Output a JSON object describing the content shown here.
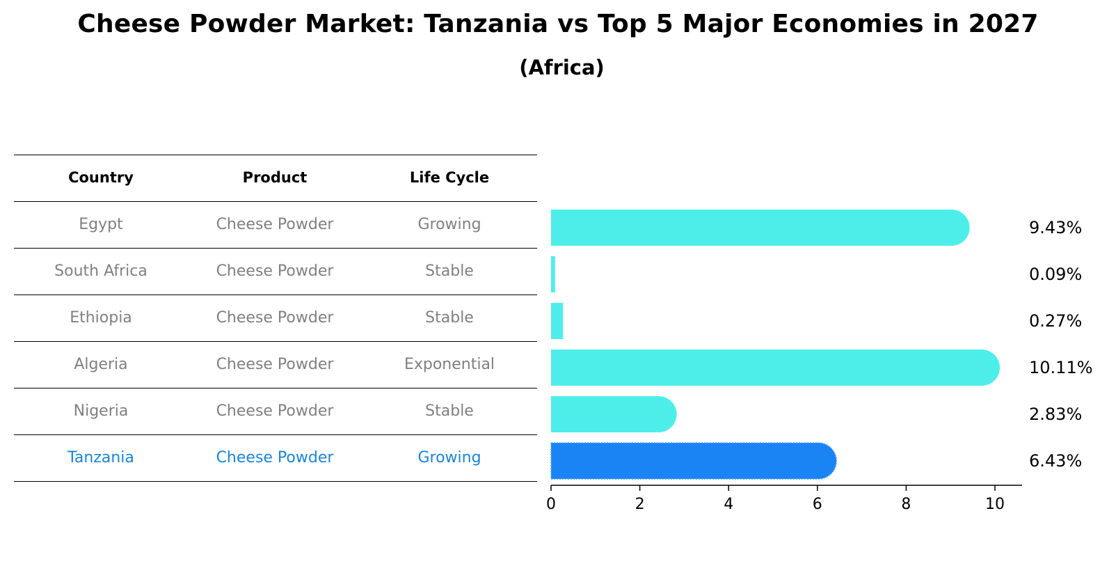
{
  "title": "Cheese Powder Market: Tanzania vs Top 5 Major Economies in 2027",
  "subtitle": "(Africa)",
  "table": {
    "headers": [
      "Country",
      "Product",
      "Life Cycle"
    ],
    "rows": [
      [
        "Egypt",
        "Cheese Powder",
        "Growing"
      ],
      [
        "South Africa",
        "Cheese Powder",
        "Stable"
      ],
      [
        "Ethiopia",
        "Cheese Powder",
        "Stable"
      ],
      [
        "Algeria",
        "Cheese Powder",
        "Exponential"
      ],
      [
        "Nigeria",
        "Cheese Powder",
        "Stable"
      ],
      [
        "Tanzania",
        "Cheese Powder",
        "Growing"
      ]
    ]
  },
  "colors": {
    "bar": "#4deeea",
    "highlight_bar": "#1a84f5",
    "highlight_text": "#1a84d8",
    "muted_text": "#808080"
  },
  "chart_data": {
    "type": "bar",
    "orientation": "horizontal",
    "categories": [
      "Egypt",
      "South Africa",
      "Ethiopia",
      "Algeria",
      "Nigeria",
      "Tanzania"
    ],
    "values": [
      9.43,
      0.09,
      0.27,
      10.11,
      2.83,
      6.43
    ],
    "value_labels": [
      "9.43%",
      "0.09%",
      "0.27%",
      "10.11%",
      "2.83%",
      "6.43%"
    ],
    "highlight": "Tanzania",
    "xlim": [
      0,
      10.6
    ],
    "xticks": [
      0,
      2,
      4,
      6,
      8,
      10
    ],
    "xtick_labels": [
      "0",
      "2",
      "4",
      "6",
      "8",
      "10"
    ],
    "xlabel": "",
    "ylabel": "",
    "grid": false
  }
}
